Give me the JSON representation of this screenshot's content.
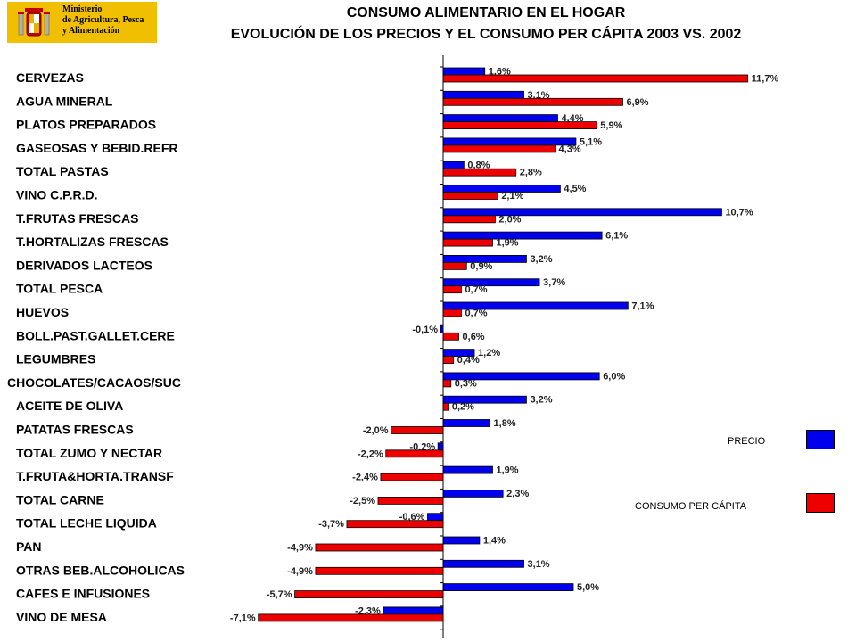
{
  "header": {
    "logo_line1": "Ministerio",
    "logo_line2": "de Agricultura, Pesca",
    "logo_line3": "y Alimentación",
    "title": "CONSUMO ALIMENTARIO EN EL HOGAR",
    "subtitle": "EVOLUCIÓN DE LOS PRECIOS Y EL CONSUMO PER CÁPITA 2003 VS. 2002"
  },
  "colors": {
    "precio": "#0000ee",
    "consumo": "#ee0000"
  },
  "chart_data": {
    "type": "bar",
    "orientation": "horizontal",
    "title": "EVOLUCIÓN DE LOS PRECIOS Y EL CONSUMO PER CÁPITA 2003 VS. 2002",
    "legend_position": "right",
    "grid": false,
    "xlim": [
      -7.5,
      12.5
    ],
    "categories": [
      "CERVEZAS",
      "AGUA MINERAL",
      "PLATOS PREPARADOS",
      "GASEOSAS Y BEBID.REFR",
      "TOTAL PASTAS",
      "VINO C.P.R.D.",
      "T.FRUTAS FRESCAS",
      "T.HORTALIZAS FRESCAS",
      "DERIVADOS LACTEOS",
      "TOTAL PESCA",
      "HUEVOS",
      "BOLL.PAST.GALLET.CERE",
      "LEGUMBRES",
      "CHOCOLATES/CACAOS/SUC",
      "ACEITE DE OLIVA",
      "PATATAS FRESCAS",
      "TOTAL ZUMO Y NECTAR",
      "T.FRUTA&HORTA.TRANSF",
      "TOTAL CARNE",
      "TOTAL LECHE LIQUIDA",
      "PAN",
      "OTRAS BEB.ALCOHOLICAS",
      "CAFES E INFUSIONES",
      "VINO DE MESA"
    ],
    "series": [
      {
        "name": "PRECIO",
        "values": [
          1.6,
          3.1,
          4.4,
          5.1,
          0.8,
          4.5,
          10.7,
          6.1,
          3.2,
          3.7,
          7.1,
          -0.1,
          1.2,
          6.0,
          3.2,
          1.8,
          -0.2,
          1.9,
          2.3,
          -0.6,
          1.4,
          3.1,
          5.0,
          -2.3
        ],
        "labels": [
          "1,6%",
          "3,1%",
          "4,4%",
          "5,1%",
          "0,8%",
          "4,5%",
          "10,7%",
          "6,1%",
          "3,2%",
          "3,7%",
          "7,1%",
          "-0,1%",
          "1,2%",
          "6,0%",
          "3,2%",
          "1,8%",
          "-0,2%",
          "1,9%",
          "2,3%",
          "-0,6%",
          "1,4%",
          "3,1%",
          "5,0%",
          "-2,3%"
        ]
      },
      {
        "name": "CONSUMO PER CÁPITA",
        "values": [
          11.7,
          6.9,
          5.9,
          4.3,
          2.8,
          2.1,
          2.0,
          1.9,
          0.9,
          0.7,
          0.7,
          0.6,
          0.4,
          0.3,
          0.2,
          -2.0,
          -2.2,
          -2.4,
          -2.5,
          -3.7,
          -4.9,
          -4.9,
          -5.7,
          -7.1
        ],
        "labels": [
          "11,7%",
          "6,9%",
          "5,9%",
          "4,3%",
          "2,8%",
          "2,1%",
          "2,0%",
          "1,9%",
          "0,9%",
          "0,7%",
          "0,7%",
          "0,6%",
          "0,4%",
          "0,3%",
          "0,2%",
          "-2,0%",
          "-2,2%",
          "-2,4%",
          "-2,5%",
          "-3,7%",
          "-4,9%",
          "-4,9%",
          "-5,7%",
          "-7,1%"
        ]
      }
    ]
  }
}
